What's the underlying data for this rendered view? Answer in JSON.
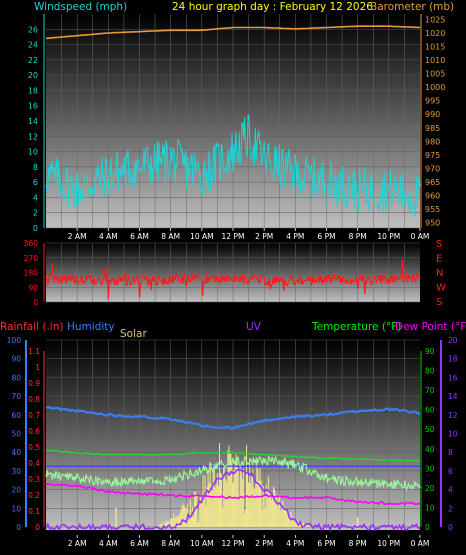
{
  "header": {
    "windspeed_label": "Windspeed (mph)",
    "title": "24 hour graph day : February 12 2026",
    "barometer_label": "Barometer (mb)"
  },
  "legend": {
    "rainfall": "Rainfall (.in)",
    "humidity": "Humidity",
    "solar": "Solar",
    "uv": "UV",
    "temperature": "Temperature (°F)",
    "dewpoint": "Dew Point (°F)"
  },
  "colors": {
    "wind": "#22d3d3",
    "barometer": "#e89a3c",
    "direction": "#ff1a1a",
    "rain": "#ff3030",
    "humidity": "#3a7ff0",
    "solar": "#f0e68c",
    "uv": "#9b30ff",
    "temperature": "#98fb98",
    "dewpoint": "#ff00ff",
    "tempaxis": "#00cc00"
  },
  "chart_data": [
    {
      "type": "line",
      "name": "wind-barometer",
      "x_ticks": [
        "2 AM",
        "4 AM",
        "6 AM",
        "8 AM",
        "10 AM",
        "12 PM",
        "2 PM",
        "4 PM",
        "6 PM",
        "8 PM",
        "10 PM",
        "0 AM"
      ],
      "left_axis": {
        "ticks": [
          0,
          2,
          4,
          6,
          8,
          10,
          12,
          14,
          16,
          18,
          20,
          22,
          24,
          26
        ],
        "ylim": [
          0,
          28
        ]
      },
      "right_axis": {
        "ticks": [
          950,
          955,
          960,
          965,
          970,
          975,
          980,
          985,
          990,
          995,
          1000,
          1005,
          1010,
          1015,
          1020,
          1025
        ],
        "ylim": [
          948,
          1027
        ]
      },
      "series": [
        {
          "key": "wind",
          "x": [
            0,
            2,
            4,
            6,
            8,
            10,
            12,
            13,
            14,
            16,
            18,
            20,
            22,
            24
          ],
          "values": [
            7,
            5,
            7,
            8,
            9,
            7,
            10,
            12,
            9,
            7,
            6,
            5,
            5,
            4
          ]
        },
        {
          "key": "barometer",
          "x": [
            0,
            2,
            4,
            6,
            8,
            10,
            12,
            14,
            16,
            18,
            20,
            22,
            24
          ],
          "values": [
            1018,
            1019,
            1020,
            1020.5,
            1021,
            1021,
            1022,
            1022,
            1021.5,
            1022,
            1022.5,
            1022.5,
            1022
          ]
        }
      ]
    },
    {
      "type": "scatter",
      "name": "wind-direction",
      "left_axis": {
        "ticks": [
          0,
          90,
          180,
          270,
          360
        ],
        "ylim": [
          0,
          360
        ]
      },
      "right_labels": [
        "S",
        "E",
        "N",
        "W",
        "S"
      ],
      "series": [
        {
          "key": "direction",
          "x": [
            0,
            3,
            6,
            9,
            12,
            15,
            18,
            21,
            24
          ],
          "values": [
            140,
            135,
            130,
            140,
            145,
            130,
            140,
            135,
            150
          ]
        }
      ]
    },
    {
      "type": "line",
      "name": "rain-humidity-solar-temperature",
      "x_ticks": [
        "2 AM",
        "4 AM",
        "6 AM",
        "8 AM",
        "10 AM",
        "12 PM",
        "2 PM",
        "4 PM",
        "6 PM",
        "8 PM",
        "10 PM",
        "0 AM"
      ],
      "humidity_axis": {
        "ticks": [
          0,
          10,
          20,
          30,
          40,
          50,
          60,
          70,
          80,
          90,
          100
        ],
        "ylim": [
          0,
          100
        ]
      },
      "rain_axis": {
        "ticks": [
          "0",
          "0.1",
          "0.2",
          "0.3",
          "0.4",
          "0.5",
          "0.6",
          "0.7",
          "0.8",
          "0.9",
          "1",
          "1.1"
        ],
        "ylim": [
          0,
          1.1
        ]
      },
      "temp_axis": {
        "ticks": [
          0,
          10,
          20,
          30,
          40,
          50,
          60,
          70,
          80,
          90
        ],
        "ylim": [
          0,
          90
        ]
      },
      "uv_axis": {
        "ticks": [
          0,
          2,
          4,
          6,
          8,
          10,
          12,
          14,
          16,
          18,
          20
        ],
        "ylim": [
          0,
          20
        ]
      },
      "series": [
        {
          "key": "humidity",
          "x": [
            0,
            2,
            4,
            6,
            8,
            10,
            11,
            12,
            14,
            16,
            18,
            20,
            22,
            24
          ],
          "values": [
            64,
            62,
            60,
            59,
            58,
            54,
            53,
            53,
            57,
            59,
            60,
            62,
            63,
            61
          ]
        },
        {
          "key": "temperature",
          "x": [
            0,
            2,
            4,
            6,
            8,
            10,
            12,
            14,
            16,
            18,
            20,
            22,
            24
          ],
          "values": [
            27,
            25,
            23,
            23,
            24,
            29,
            33,
            34,
            32,
            25,
            23,
            22,
            21
          ]
        },
        {
          "key": "dewpoint",
          "x": [
            0,
            2,
            4,
            6,
            8,
            10,
            12,
            14,
            16,
            18,
            20,
            22,
            24
          ],
          "values": [
            22,
            21,
            18,
            17,
            16,
            16,
            15,
            16,
            15,
            15,
            13,
            12,
            12
          ]
        },
        {
          "key": "rainfall",
          "x": [
            0,
            24
          ],
          "values": [
            0.38,
            0.38
          ]
        },
        {
          "key": "uv",
          "x": [
            0,
            7,
            8,
            9,
            10,
            11,
            12,
            13,
            14,
            15,
            16,
            17,
            24
          ],
          "values": [
            0,
            0,
            0,
            0.8,
            3,
            5,
            6,
            6,
            4,
            2.5,
            0.5,
            0,
            0
          ]
        },
        {
          "key": "solar",
          "x": [
            0,
            7,
            8,
            9,
            10,
            11,
            12,
            13,
            14,
            15,
            16,
            17,
            24
          ],
          "values": [
            0,
            0,
            0.05,
            0.15,
            0.3,
            0.45,
            0.5,
            0.45,
            0.32,
            0.18,
            0.05,
            0,
            0
          ]
        },
        {
          "key": "tempband",
          "x": [
            0,
            2,
            4,
            6,
            8,
            10,
            12,
            14,
            16,
            18,
            20,
            22,
            24
          ],
          "values": [
            39,
            38,
            37,
            37,
            37,
            38,
            38,
            37,
            36,
            35,
            35,
            34,
            34
          ]
        }
      ]
    }
  ]
}
